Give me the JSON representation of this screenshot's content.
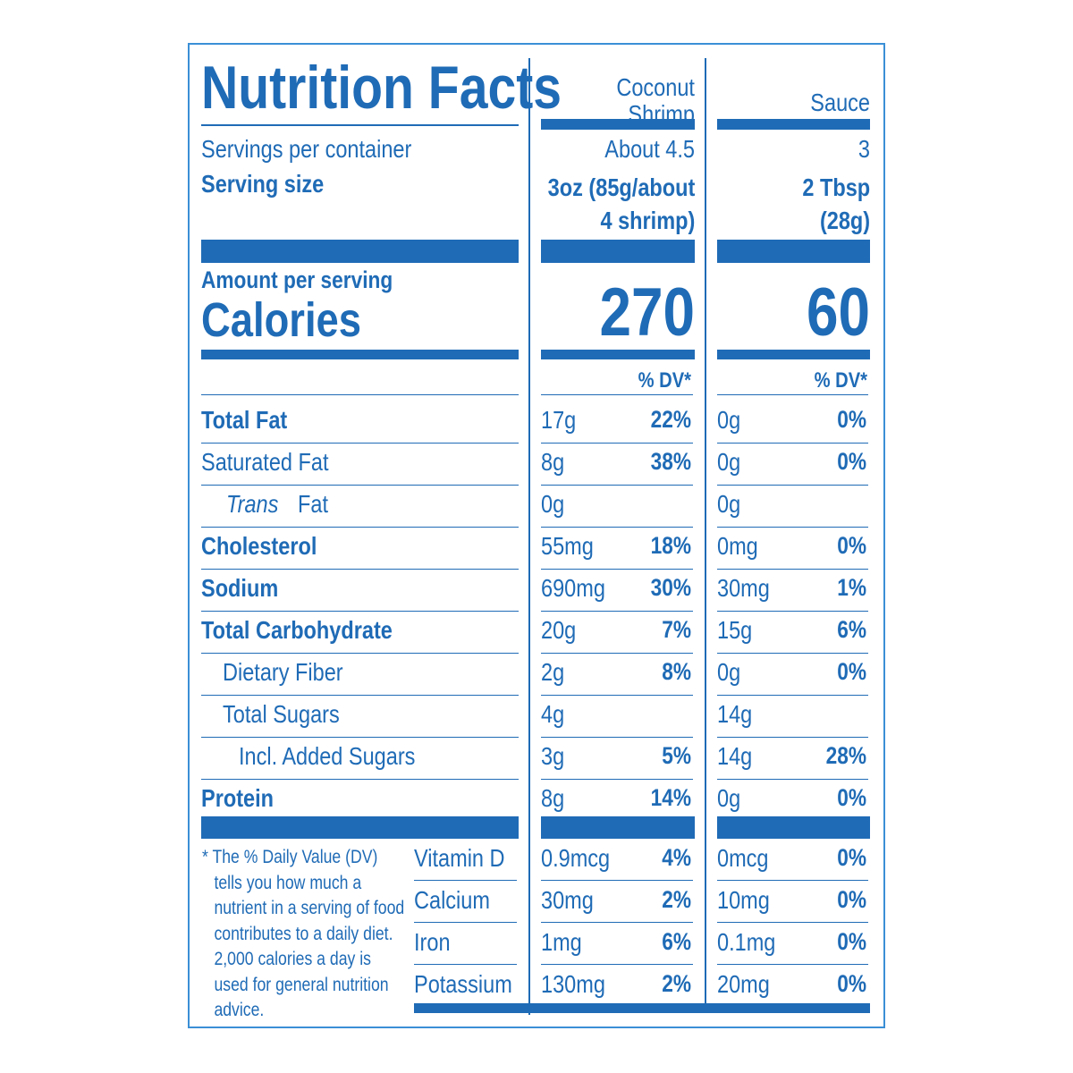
{
  "header": {
    "title": "Nutrition Facts",
    "columns": [
      "Coconut Shrimp",
      "Sauce"
    ]
  },
  "servings": {
    "label": "Servings per container",
    "values": [
      "About 4.5",
      "3"
    ]
  },
  "serving_size": {
    "label": "Serving size",
    "values": [
      "3oz (85g/about 4 shrimp)",
      "2 Tbsp (28g)"
    ]
  },
  "calories": {
    "amount_label": "Amount per serving",
    "label": "Calories",
    "values": [
      270,
      60
    ]
  },
  "dv_header": "% DV*",
  "nutrients": [
    {
      "name": "Total Fat",
      "level": 0,
      "bold": true,
      "values": [
        [
          "17g",
          "22%"
        ],
        [
          "0g",
          "0%"
        ]
      ]
    },
    {
      "name": "Saturated Fat",
      "level": 0,
      "bold": false,
      "values": [
        [
          "8g",
          "38%"
        ],
        [
          "0g",
          "0%"
        ]
      ]
    },
    {
      "prefix": "Trans",
      "name": "Fat",
      "level": 1,
      "bold": false,
      "values": [
        [
          "0g",
          null
        ],
        [
          "0g",
          null
        ]
      ]
    },
    {
      "name": "Cholesterol",
      "level": 0,
      "bold": true,
      "values": [
        [
          "55mg",
          "18%"
        ],
        [
          "0mg",
          "0%"
        ]
      ]
    },
    {
      "name": "Sodium",
      "level": 0,
      "bold": true,
      "values": [
        [
          "690mg",
          "30%"
        ],
        [
          "30mg",
          "1%"
        ]
      ]
    },
    {
      "name": "Total Carbohydrate",
      "level": 0,
      "bold": true,
      "values": [
        [
          "20g",
          "7%"
        ],
        [
          "15g",
          "6%"
        ]
      ]
    },
    {
      "name": "Dietary Fiber",
      "level": 1,
      "bold": false,
      "values": [
        [
          "2g",
          "8%"
        ],
        [
          "0g",
          "0%"
        ]
      ]
    },
    {
      "name": "Total Sugars",
      "level": 1,
      "bold": false,
      "values": [
        [
          "4g",
          null
        ],
        [
          "14g",
          null
        ]
      ]
    },
    {
      "name": "Incl. Added Sugars",
      "level": 2,
      "bold": false,
      "values": [
        [
          "3g",
          "5%"
        ],
        [
          "14g",
          "28%"
        ]
      ]
    },
    {
      "name": "Protein",
      "level": 0,
      "bold": true,
      "values": [
        [
          "8g",
          "14%"
        ],
        [
          "0g",
          "0%"
        ]
      ]
    }
  ],
  "vitamins": [
    {
      "name": "Vitamin D",
      "values": [
        [
          "0.9mcg",
          "4%"
        ],
        [
          "0mcg",
          "0%"
        ]
      ]
    },
    {
      "name": "Calcium",
      "values": [
        [
          "30mg",
          "2%"
        ],
        [
          "10mg",
          "0%"
        ]
      ]
    },
    {
      "name": "Iron",
      "values": [
        [
          "1mg",
          "6%"
        ],
        [
          "0.1mg",
          "0%"
        ]
      ]
    },
    {
      "name": "Potassium",
      "values": [
        [
          "130mg",
          "2%"
        ],
        [
          "20mg",
          "0%"
        ]
      ]
    }
  ],
  "footnote": "* The % Daily Value (DV) tells you how much a nutrient in a serving of food contributes to a daily diet. 2,000 calories a day is used for general nutrition advice."
}
